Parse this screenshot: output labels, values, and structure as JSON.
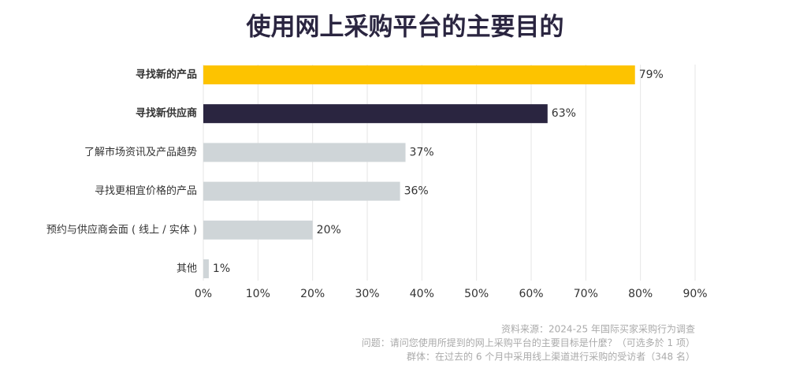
{
  "chart_data": {
    "type": "bar",
    "orientation": "horizontal",
    "title": "使用网上采购平台的主要目的",
    "categories": [
      "寻找新的产品",
      "寻找新供应商",
      "了解市场资讯及产品趋势",
      "寻找更相宜价格的产品",
      "预约与供应商会面 ( 线上 / 实体 )",
      "其他"
    ],
    "values": [
      79,
      63,
      37,
      36,
      20,
      1
    ],
    "value_labels": [
      "79%",
      "63%",
      "37%",
      "36%",
      "20%",
      "1%"
    ],
    "colors": [
      "#fdc300",
      "#2a2540",
      "#cfd5d8",
      "#cfd5d8",
      "#cfd5d8",
      "#cfd5d8"
    ],
    "emphasis": [
      true,
      true,
      false,
      false,
      false,
      false
    ],
    "xlim": [
      0,
      90
    ],
    "xticks": [
      {
        "value": 0,
        "label": "0%"
      },
      {
        "value": 10,
        "label": "10%"
      },
      {
        "value": 20,
        "label": "20%"
      },
      {
        "value": 30,
        "label": "30%"
      },
      {
        "value": 40,
        "label": "40%"
      },
      {
        "value": 50,
        "label": "50%"
      },
      {
        "value": 60,
        "label": "60%"
      },
      {
        "value": 70,
        "label": "70%"
      },
      {
        "value": 80,
        "label": "80%"
      },
      {
        "value": 90,
        "label": "90%"
      }
    ],
    "grid": true,
    "notes": [
      "资料来源：2024-25 年国际买家采购行为调查",
      "问题：请问您使用所提到的网上采购平台的主要目标是什麼？（可选多於 1 项）",
      "群体：在过去的 6 个月中采用线上渠道进行采购的受访者（348 名）"
    ]
  }
}
